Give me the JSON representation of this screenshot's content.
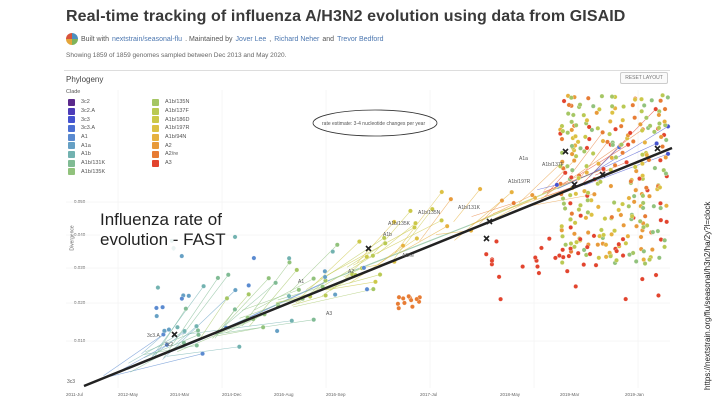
{
  "header": {
    "title": "Real-time tracking of influenza A/H3N2 evolution using data from GISAID",
    "built_prefix": "Built with",
    "built_link": "nextstrain/seasonal-flu",
    "maintained_prefix": ". Maintained by",
    "maintainer1": "Jover Lee",
    "maintainer2": "Richard Neher",
    "maintainer_and": "and",
    "maintainer3": "Trevor Bedford",
    "showing": "Showing 1859 of 1859 genomes sampled between Dec 2013 and May 2020."
  },
  "panel": {
    "title": "Phylogeny",
    "reset_label": "RESET LAYOUT",
    "clade_label": "Clade",
    "ylabel": "Divergence"
  },
  "legend": {
    "left": [
      {
        "label": "3c2",
        "color": "#5b2a8c"
      },
      {
        "label": "3c2.A",
        "color": "#4d3cb8"
      },
      {
        "label": "3c3",
        "color": "#4452cf"
      },
      {
        "label": "3c3.A",
        "color": "#4b6fd3"
      },
      {
        "label": "A1",
        "color": "#5a8ad0"
      },
      {
        "label": "A1a",
        "color": "#66a0c4"
      },
      {
        "label": "A1b",
        "color": "#72b2b0"
      },
      {
        "label": "A1b/131K",
        "color": "#80bb94"
      },
      {
        "label": "A1b/135K",
        "color": "#91c27c"
      }
    ],
    "right": [
      {
        "label": "A1b/135N",
        "color": "#a5c664"
      },
      {
        "label": "A1b/137F",
        "color": "#b9c953"
      },
      {
        "label": "A1b/186D",
        "color": "#cbc848"
      },
      {
        "label": "A1b/197R",
        "color": "#dcc143"
      },
      {
        "label": "A1b/94N",
        "color": "#e6b13f"
      },
      {
        "label": "A2",
        "color": "#e89a3a"
      },
      {
        "label": "A2/re",
        "color": "#e77c34"
      },
      {
        "label": "A3",
        "color": "#e2442e"
      }
    ]
  },
  "tooltip_note": "rate estimate: 3-4 nucleotide changes per year",
  "overlay": {
    "line1": "Influenza rate of",
    "line2": "evolution - FAST"
  },
  "yticks": [
    "0.050",
    "0.040",
    "0.030",
    "0.020",
    "0.010"
  ],
  "xticks": [
    "2011-Jul",
    "2012-May",
    "2014-Mar",
    "2014-Dec",
    "2016-Aug",
    "2016-Sep",
    "2017-Jul",
    "2018-May",
    "2019-Mar",
    "2019-Jan"
  ],
  "clade_annotations": {
    "a1a": "A1a",
    "a1b137f": "A1b/137F",
    "a1b197r": "A1b/197R",
    "a1b131k": "A1b/131K",
    "a1b135n": "A1b/135N",
    "a1b135k": "A1b/135K",
    "a1b": "A1b",
    "a2re": "A2/re",
    "a2": "A2",
    "a1": "A1",
    "a3": "A3",
    "c3c3a": "3c3.A",
    "c3c2": "3c2",
    "c3c3": "3c3"
  },
  "source_url": "https://nextstrain.org/flu/seasonal/h3n2/ha/2y?l=clock"
}
